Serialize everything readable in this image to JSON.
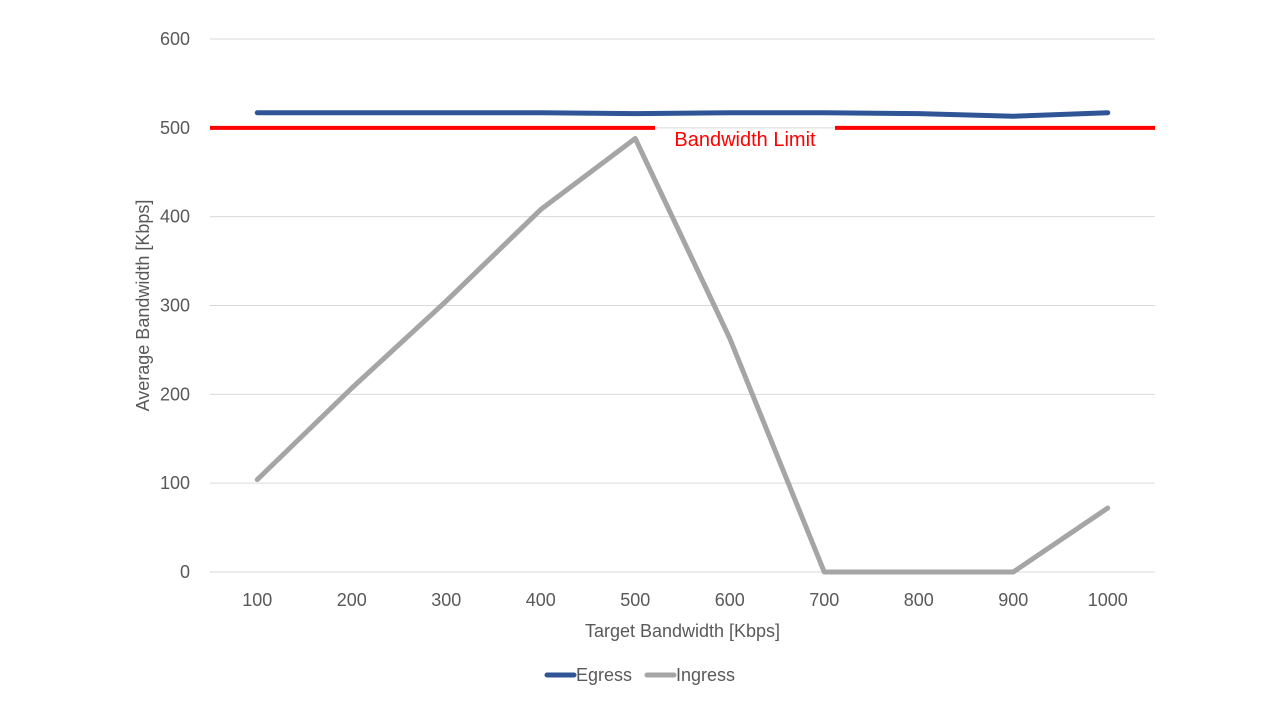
{
  "chart_data": {
    "type": "line",
    "title": "",
    "xlabel": "Target Bandwidth [Kbps]",
    "ylabel": "Average Bandwidth [Kbps]",
    "categories": [
      "100",
      "200",
      "300",
      "400",
      "500",
      "600",
      "700",
      "800",
      "900",
      "1000"
    ],
    "ylim": [
      0,
      600
    ],
    "yticks": [
      "0",
      "100",
      "200",
      "300",
      "400",
      "500",
      "600"
    ],
    "grid": true,
    "legend_position": "bottom",
    "series": [
      {
        "name": "Egress",
        "color": "#2f5597",
        "values": [
          517,
          517,
          517,
          517,
          516,
          517,
          517,
          516,
          513,
          517
        ]
      },
      {
        "name": "Ingress",
        "color": "#a5a5a5",
        "values": [
          104,
          207,
          305,
          408,
          488,
          263,
          0,
          0,
          0,
          72
        ]
      }
    ],
    "reference_line": {
      "label": "Bandwidth Limit",
      "value": 500,
      "color": "#ff0000"
    }
  }
}
